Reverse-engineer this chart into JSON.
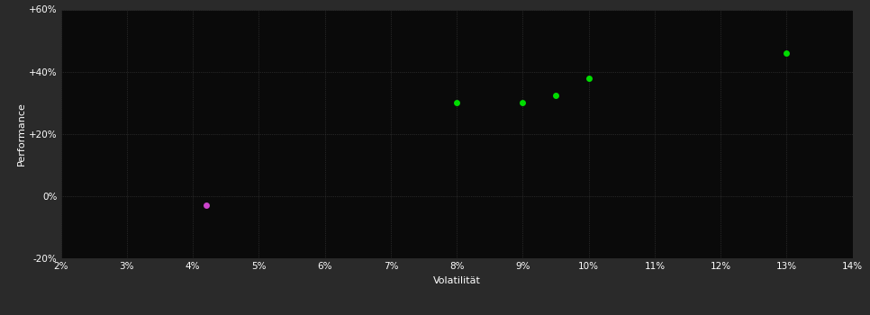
{
  "background_color": "#2a2a2a",
  "plot_bg_color": "#0a0a0a",
  "grid_color": "#404040",
  "text_color": "#ffffff",
  "xlabel": "Volatilität",
  "ylabel": "Performance",
  "xlim": [
    0.02,
    0.14
  ],
  "ylim": [
    -0.2,
    0.6
  ],
  "xticks": [
    0.02,
    0.03,
    0.04,
    0.05,
    0.06,
    0.07,
    0.08,
    0.09,
    0.1,
    0.11,
    0.12,
    0.13,
    0.14
  ],
  "yticks": [
    -0.2,
    0.0,
    0.2,
    0.4,
    0.6
  ],
  "ytick_labels": [
    "-20%",
    "0%",
    "+20%",
    "+40%",
    "+60%"
  ],
  "green_points": [
    [
      0.08,
      0.3
    ],
    [
      0.09,
      0.3
    ],
    [
      0.095,
      0.325
    ],
    [
      0.1,
      0.38
    ],
    [
      0.13,
      0.46
    ]
  ],
  "pink_points": [
    [
      0.042,
      -0.03
    ]
  ],
  "green_color": "#00dd00",
  "pink_color": "#cc44cc",
  "marker_size": 25
}
